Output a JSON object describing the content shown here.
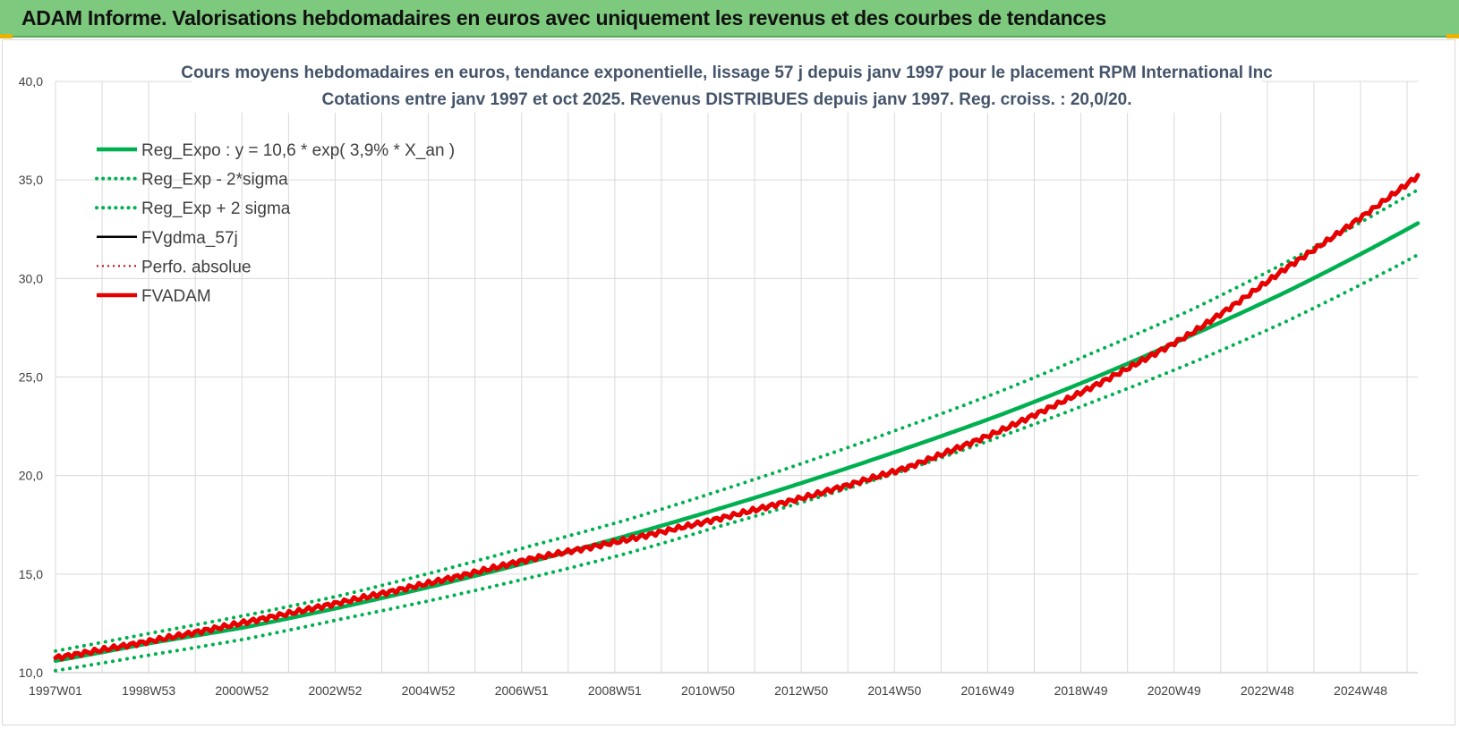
{
  "header": {
    "title": "ADAM Informe. Valorisations hebdomadaires en euros avec uniquement les revenus et des courbes de tendances"
  },
  "colors": {
    "header_bg": "#7dc97d",
    "green": "#00b050",
    "red": "#e60000",
    "black": "#000000",
    "grid": "#d9d9d9"
  },
  "chart_data": {
    "type": "line",
    "title": "Cours moyens hebdomadaires en euros, tendance exponentielle, lissage 57 j depuis janv 1997 pour le placement RPM International Inc",
    "subtitle": "Cotations entre janv 1997 et oct 2025. Revenus DISTRIBUES depuis janv 1997.  Reg. croiss. : 20,0/20.",
    "xlabel": "",
    "ylabel": "",
    "ylim": [
      10,
      40
    ],
    "yticks": [
      "10,0",
      "15,0",
      "20,0",
      "25,0",
      "30,0",
      "35,0",
      "40,0"
    ],
    "xticks": [
      "1997W01",
      "1998W53",
      "2000W52",
      "2002W52",
      "2004W52",
      "2006W51",
      "2008W51",
      "2010W50",
      "2012W50",
      "2014W50",
      "2016W49",
      "2018W49",
      "2020W49",
      "2022W48",
      "2024W48"
    ],
    "grid": true,
    "legend_position": "top-left",
    "series": [
      {
        "name": "Reg_Expo : y = 10,6 * exp( 3,9% *  X_an )",
        "style": "solid-green",
        "x": [
          1997,
          1999,
          2001,
          2003,
          2005,
          2007,
          2009,
          2011,
          2013,
          2015,
          2017,
          2019,
          2021,
          2023,
          2025.8
        ],
        "values": [
          10.6,
          11.5,
          12.3,
          13.3,
          14.4,
          15.6,
          16.9,
          18.3,
          19.8,
          21.4,
          23.1,
          25.0,
          27.1,
          29.3,
          32.8
        ]
      },
      {
        "name": "Reg_Exp - 2*sigma",
        "style": "dotted-green",
        "x": [
          1997,
          1999,
          2001,
          2003,
          2005,
          2007,
          2009,
          2011,
          2013,
          2015,
          2017,
          2019,
          2021,
          2023,
          2025.8
        ],
        "values": [
          10.1,
          10.9,
          11.7,
          12.7,
          13.7,
          14.8,
          16.0,
          17.4,
          18.8,
          20.3,
          22.0,
          23.8,
          25.7,
          27.8,
          31.2
        ]
      },
      {
        "name": "Reg_Exp + 2 sigma",
        "style": "dotted-green",
        "x": [
          1997,
          1999,
          2001,
          2003,
          2005,
          2007,
          2009,
          2011,
          2013,
          2015,
          2017,
          2019,
          2021,
          2023,
          2025.8
        ],
        "values": [
          11.1,
          12.0,
          12.9,
          13.9,
          15.1,
          16.4,
          17.7,
          19.2,
          20.8,
          22.5,
          24.3,
          26.3,
          28.4,
          30.8,
          34.5
        ]
      },
      {
        "name": "FVgdma_57j",
        "style": "solid-black",
        "x": [
          1997,
          1999,
          2001,
          2003,
          2005,
          2007,
          2009,
          2011,
          2013,
          2015,
          2017,
          2019,
          2021,
          2023,
          2025.8
        ],
        "values": [
          10.75,
          11.6,
          12.55,
          13.55,
          14.6,
          15.75,
          16.7,
          17.8,
          19.0,
          20.4,
          22.3,
          24.6,
          27.2,
          30.5,
          35.2
        ]
      },
      {
        "name": "Perfo. absolue",
        "style": "dotted-red",
        "x": [
          1997,
          1999,
          2001,
          2003,
          2005,
          2007,
          2009,
          2011,
          2013,
          2015,
          2017,
          2019,
          2021,
          2023,
          2025.8
        ],
        "values": [
          10.75,
          11.6,
          12.55,
          13.55,
          14.6,
          15.75,
          16.7,
          17.8,
          19.0,
          20.4,
          22.3,
          24.6,
          27.2,
          30.5,
          35.2
        ]
      },
      {
        "name": "FVADAM",
        "style": "solid-red",
        "x": [
          1997,
          1999,
          2001,
          2003,
          2005,
          2007,
          2009,
          2011,
          2013,
          2015,
          2017,
          2019,
          2021,
          2023,
          2025.8
        ],
        "values": [
          10.75,
          11.6,
          12.55,
          13.55,
          14.6,
          15.75,
          16.7,
          17.8,
          19.0,
          20.4,
          22.3,
          24.6,
          27.2,
          30.5,
          35.2
        ]
      }
    ]
  }
}
